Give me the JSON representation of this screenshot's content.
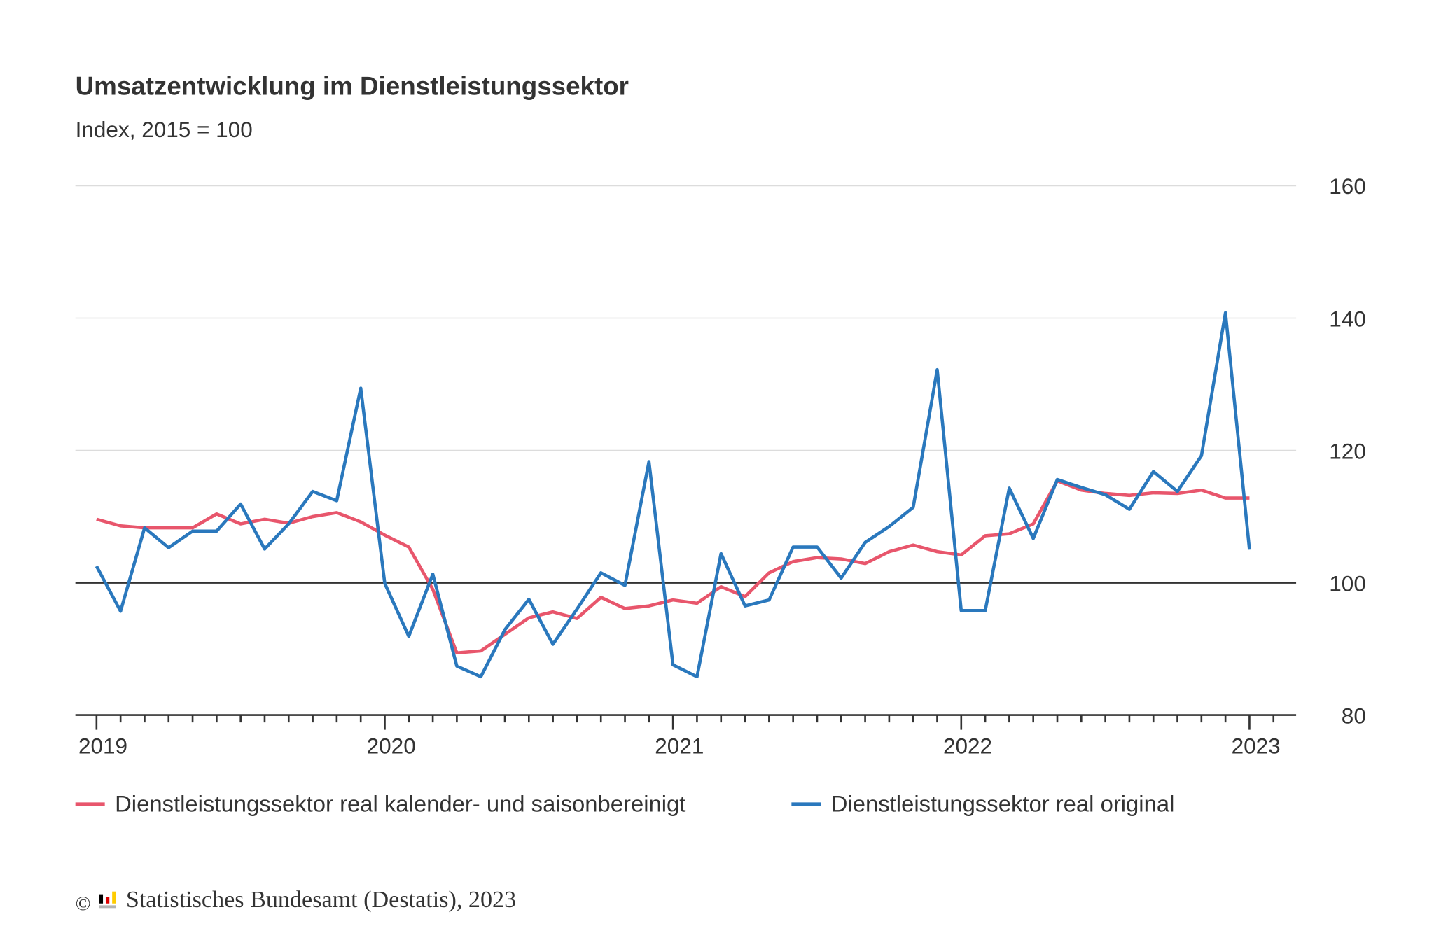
{
  "chart_data": {
    "type": "line",
    "title": "Umsatzentwicklung im Dienstleistungssektor",
    "subtitle": "Index, 2015 = 100",
    "xlabel": "",
    "ylabel": "",
    "x_start": "2019-01",
    "x_end": "2023-01",
    "x_frequency": "monthly",
    "x_tick_labels": [
      "2019",
      "2020",
      "2021",
      "2022",
      "2023"
    ],
    "y_tick_labels": [
      "80",
      "100",
      "120",
      "140",
      "160"
    ],
    "ylim": [
      80,
      160
    ],
    "y_axis_position": "right",
    "reference_line": 100,
    "grid": true,
    "legend_position": "bottom",
    "series": [
      {
        "name": "Dienstleistungssektor real kalender- und saisonbereinigt",
        "color": "#e8566c",
        "values": [
          109.6,
          108.6,
          108.3,
          108.3,
          108.3,
          110.4,
          108.9,
          109.6,
          109.0,
          110.0,
          110.6,
          109.2,
          107.2,
          105.4,
          99.0,
          89.4,
          89.7,
          92.2,
          94.7,
          95.6,
          94.6,
          97.8,
          96.1,
          96.5,
          97.4,
          96.9,
          99.4,
          97.9,
          101.5,
          103.2,
          103.8,
          103.6,
          102.9,
          104.7,
          105.7,
          104.7,
          104.2,
          107.1,
          107.4,
          108.9,
          115.4,
          114.0,
          113.5,
          113.2,
          113.6,
          113.5,
          114.0,
          112.8,
          112.8
        ]
      },
      {
        "name": "Dienstleistungssektor real original",
        "color": "#2a78bd",
        "values": [
          102.5,
          95.7,
          108.3,
          105.3,
          107.8,
          107.8,
          111.9,
          105.1,
          108.9,
          113.8,
          112.4,
          129.4,
          99.9,
          91.9,
          101.3,
          87.4,
          85.8,
          92.9,
          97.5,
          90.7,
          96.0,
          101.5,
          99.6,
          118.3,
          87.6,
          85.8,
          104.4,
          96.5,
          97.4,
          105.4,
          105.4,
          100.7,
          106.1,
          108.5,
          111.4,
          132.2,
          95.8,
          95.8,
          114.3,
          106.7,
          115.6,
          114.4,
          113.3,
          111.1,
          116.8,
          113.8,
          119.2,
          140.8,
          105.0
        ]
      }
    ]
  },
  "footer": {
    "copyright_symbol": "©",
    "source": "Statistisches Bundesamt (Destatis), 2023",
    "logo_colors": [
      "#000000",
      "#dd0000",
      "#ffcc00",
      "#b3b3b3"
    ]
  }
}
